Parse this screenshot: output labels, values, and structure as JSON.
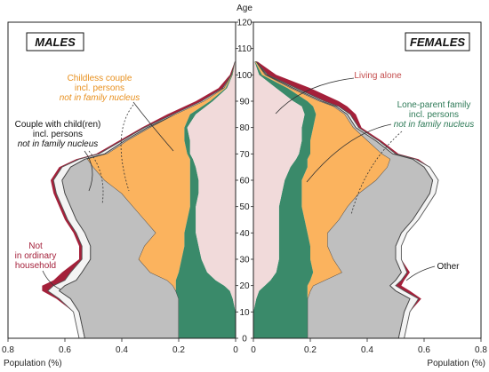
{
  "chart_data": {
    "type": "area",
    "kind": "population pyramid by living arrangement (stacked, mirrored)",
    "axis_label": "Age",
    "x_axis_label": "Population (%)",
    "panels": {
      "left": "MALES",
      "right": "FEMALES"
    },
    "age_ticks": [
      "0",
      "10",
      "20",
      "30",
      "40",
      "50",
      "60",
      "70",
      "80",
      "90",
      "100",
      "110",
      "120"
    ],
    "x_ticks_left": [
      "0.8",
      "0.6",
      "0.4",
      "0.2",
      "0"
    ],
    "x_ticks_right": [
      "0",
      "0.2",
      "0.4",
      "0.6",
      "0.8"
    ],
    "xlim": [
      0,
      0.8
    ],
    "ylim": [
      0,
      120
    ],
    "grid": false,
    "colors": {
      "living_alone": "#f1dada",
      "lone_parent": "#3a8a6a",
      "childless_couple": "#fbb35e",
      "couple_with_children": "#bfbfbf",
      "other": "#f4f4f4",
      "not_in_ordinary_household": "#a4203a",
      "annot_living_alone": "#c44d4d",
      "annot_lone_parent": "#2e7a57",
      "annot_childless": "#e8901e"
    },
    "annotations": {
      "childless_l1": "Childless couple",
      "childless_l2": "incl. persons",
      "childless_l3": "not in family nucleus",
      "couple_l1": "Couple with child(ren)",
      "couple_l2": "incl. persons",
      "couple_l3": "not in family nucleus",
      "not_l1": "Not",
      "not_l2": "in ordinary",
      "not_l3": "household",
      "living_alone": "Living alone",
      "lone_l1": "Lone-parent family",
      "lone_l2": "incl. persons",
      "lone_l3": "not in family nucleus",
      "other": "Other"
    },
    "series_order": [
      "living_alone",
      "lone_parent",
      "childless_couple",
      "couple_with_children",
      "other",
      "not_in_ordinary_household"
    ],
    "males": {
      "ages": [
        0,
        5,
        10,
        15,
        18,
        20,
        22,
        25,
        30,
        35,
        40,
        45,
        50,
        55,
        60,
        65,
        68,
        70,
        75,
        80,
        85,
        90,
        95,
        100,
        105
      ],
      "cum": {
        "living_alone": [
          0,
          0,
          0,
          0.01,
          0.02,
          0.04,
          0.07,
          0.1,
          0.12,
          0.13,
          0.14,
          0.14,
          0.14,
          0.13,
          0.13,
          0.14,
          0.15,
          0.16,
          0.16,
          0.17,
          0.14,
          0.08,
          0.03,
          0.01,
          0.002
        ],
        "lone_parent": [
          0.2,
          0.2,
          0.2,
          0.2,
          0.21,
          0.21,
          0.21,
          0.2,
          0.19,
          0.18,
          0.18,
          0.17,
          0.16,
          0.16,
          0.16,
          0.16,
          0.16,
          0.17,
          0.18,
          0.18,
          0.16,
          0.09,
          0.035,
          0.012,
          0.002
        ],
        "childless_couple": [
          0.2,
          0.2,
          0.2,
          0.2,
          0.21,
          0.22,
          0.24,
          0.3,
          0.34,
          0.32,
          0.28,
          0.32,
          0.36,
          0.4,
          0.46,
          0.5,
          0.52,
          0.45,
          0.38,
          0.3,
          0.21,
          0.11,
          0.04,
          0.013,
          0.002
        ],
        "couple_with_children": [
          0.53,
          0.54,
          0.55,
          0.58,
          0.62,
          0.6,
          0.56,
          0.54,
          0.51,
          0.51,
          0.53,
          0.56,
          0.58,
          0.6,
          0.61,
          0.58,
          0.53,
          0.46,
          0.39,
          0.31,
          0.21,
          0.11,
          0.04,
          0.013,
          0.002
        ],
        "other": [
          0.55,
          0.56,
          0.57,
          0.62,
          0.66,
          0.64,
          0.6,
          0.58,
          0.54,
          0.54,
          0.56,
          0.59,
          0.61,
          0.63,
          0.64,
          0.61,
          0.55,
          0.48,
          0.4,
          0.32,
          0.22,
          0.12,
          0.045,
          0.015,
          0.002
        ],
        "not_in_ordinary_household": [
          0.55,
          0.56,
          0.57,
          0.63,
          0.68,
          0.68,
          0.64,
          0.61,
          0.55,
          0.55,
          0.57,
          0.6,
          0.62,
          0.64,
          0.65,
          0.62,
          0.56,
          0.49,
          0.41,
          0.33,
          0.24,
          0.14,
          0.06,
          0.02,
          0.003
        ]
      }
    },
    "females": {
      "ages": [
        0,
        5,
        10,
        15,
        18,
        20,
        22,
        25,
        30,
        35,
        40,
        45,
        50,
        55,
        60,
        65,
        68,
        70,
        75,
        80,
        85,
        88,
        90,
        95,
        100,
        105
      ],
      "cum": {
        "living_alone": [
          0,
          0,
          0,
          0.01,
          0.02,
          0.04,
          0.06,
          0.08,
          0.09,
          0.09,
          0.09,
          0.09,
          0.09,
          0.1,
          0.11,
          0.13,
          0.15,
          0.16,
          0.17,
          0.17,
          0.18,
          0.17,
          0.14,
          0.08,
          0.02,
          0.004
        ],
        "lone_parent": [
          0.19,
          0.19,
          0.19,
          0.19,
          0.19,
          0.19,
          0.2,
          0.21,
          0.2,
          0.2,
          0.19,
          0.18,
          0.17,
          0.17,
          0.17,
          0.19,
          0.19,
          0.2,
          0.2,
          0.21,
          0.22,
          0.21,
          0.19,
          0.12,
          0.03,
          0.006
        ],
        "childless_couple": [
          0.19,
          0.19,
          0.19,
          0.19,
          0.2,
          0.21,
          0.25,
          0.31,
          0.28,
          0.26,
          0.26,
          0.3,
          0.33,
          0.37,
          0.43,
          0.47,
          0.48,
          0.45,
          0.4,
          0.35,
          0.32,
          0.28,
          0.23,
          0.13,
          0.04,
          0.008
        ],
        "couple_with_children": [
          0.51,
          0.52,
          0.53,
          0.55,
          0.5,
          0.48,
          0.5,
          0.52,
          0.5,
          0.5,
          0.52,
          0.56,
          0.59,
          0.62,
          0.63,
          0.6,
          0.56,
          0.49,
          0.43,
          0.36,
          0.33,
          0.29,
          0.24,
          0.14,
          0.045,
          0.009
        ],
        "other": [
          0.53,
          0.54,
          0.55,
          0.58,
          0.53,
          0.5,
          0.52,
          0.54,
          0.52,
          0.52,
          0.54,
          0.58,
          0.61,
          0.64,
          0.65,
          0.62,
          0.57,
          0.5,
          0.44,
          0.37,
          0.34,
          0.3,
          0.25,
          0.15,
          0.05,
          0.01
        ],
        "not_in_ordinary_household": [
          0.53,
          0.54,
          0.55,
          0.59,
          0.55,
          0.52,
          0.53,
          0.55,
          0.52,
          0.52,
          0.54,
          0.58,
          0.61,
          0.64,
          0.65,
          0.62,
          0.58,
          0.51,
          0.45,
          0.38,
          0.36,
          0.33,
          0.3,
          0.2,
          0.08,
          0.015
        ]
      }
    }
  }
}
